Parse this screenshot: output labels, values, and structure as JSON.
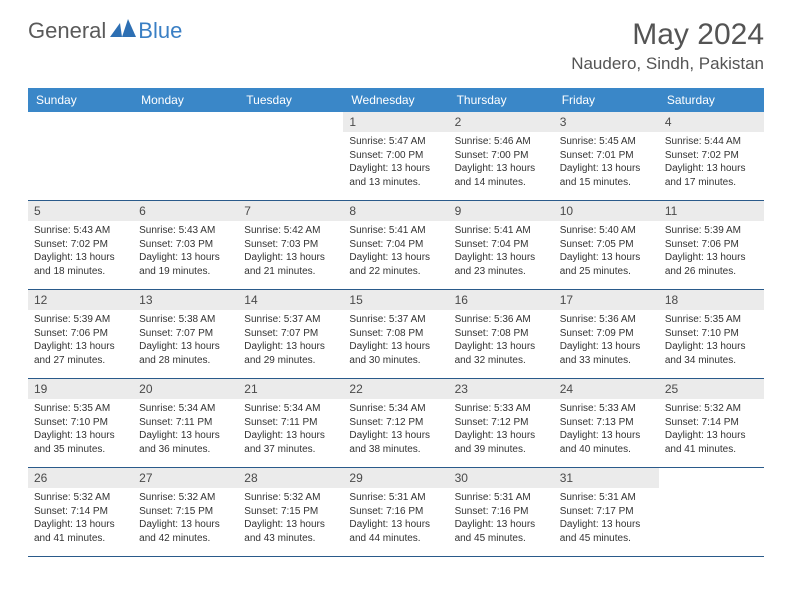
{
  "brand": {
    "part1": "General",
    "part2": "Blue"
  },
  "title": "May 2024",
  "location": "Naudero, Sindh, Pakistan",
  "colors": {
    "header_bg": "#3a87c8",
    "header_text": "#ffffff",
    "daynum_bg": "#ebebeb",
    "rule": "#2a5a8a",
    "logo_gray": "#5a5a5a",
    "logo_blue": "#3a7fc4"
  },
  "weekdays": [
    "Sunday",
    "Monday",
    "Tuesday",
    "Wednesday",
    "Thursday",
    "Friday",
    "Saturday"
  ],
  "weeks": [
    [
      {
        "n": "",
        "lines": []
      },
      {
        "n": "",
        "lines": []
      },
      {
        "n": "",
        "lines": []
      },
      {
        "n": "1",
        "lines": [
          "Sunrise: 5:47 AM",
          "Sunset: 7:00 PM",
          "Daylight: 13 hours",
          "and 13 minutes."
        ]
      },
      {
        "n": "2",
        "lines": [
          "Sunrise: 5:46 AM",
          "Sunset: 7:00 PM",
          "Daylight: 13 hours",
          "and 14 minutes."
        ]
      },
      {
        "n": "3",
        "lines": [
          "Sunrise: 5:45 AM",
          "Sunset: 7:01 PM",
          "Daylight: 13 hours",
          "and 15 minutes."
        ]
      },
      {
        "n": "4",
        "lines": [
          "Sunrise: 5:44 AM",
          "Sunset: 7:02 PM",
          "Daylight: 13 hours",
          "and 17 minutes."
        ]
      }
    ],
    [
      {
        "n": "5",
        "lines": [
          "Sunrise: 5:43 AM",
          "Sunset: 7:02 PM",
          "Daylight: 13 hours",
          "and 18 minutes."
        ]
      },
      {
        "n": "6",
        "lines": [
          "Sunrise: 5:43 AM",
          "Sunset: 7:03 PM",
          "Daylight: 13 hours",
          "and 19 minutes."
        ]
      },
      {
        "n": "7",
        "lines": [
          "Sunrise: 5:42 AM",
          "Sunset: 7:03 PM",
          "Daylight: 13 hours",
          "and 21 minutes."
        ]
      },
      {
        "n": "8",
        "lines": [
          "Sunrise: 5:41 AM",
          "Sunset: 7:04 PM",
          "Daylight: 13 hours",
          "and 22 minutes."
        ]
      },
      {
        "n": "9",
        "lines": [
          "Sunrise: 5:41 AM",
          "Sunset: 7:04 PM",
          "Daylight: 13 hours",
          "and 23 minutes."
        ]
      },
      {
        "n": "10",
        "lines": [
          "Sunrise: 5:40 AM",
          "Sunset: 7:05 PM",
          "Daylight: 13 hours",
          "and 25 minutes."
        ]
      },
      {
        "n": "11",
        "lines": [
          "Sunrise: 5:39 AM",
          "Sunset: 7:06 PM",
          "Daylight: 13 hours",
          "and 26 minutes."
        ]
      }
    ],
    [
      {
        "n": "12",
        "lines": [
          "Sunrise: 5:39 AM",
          "Sunset: 7:06 PM",
          "Daylight: 13 hours",
          "and 27 minutes."
        ]
      },
      {
        "n": "13",
        "lines": [
          "Sunrise: 5:38 AM",
          "Sunset: 7:07 PM",
          "Daylight: 13 hours",
          "and 28 minutes."
        ]
      },
      {
        "n": "14",
        "lines": [
          "Sunrise: 5:37 AM",
          "Sunset: 7:07 PM",
          "Daylight: 13 hours",
          "and 29 minutes."
        ]
      },
      {
        "n": "15",
        "lines": [
          "Sunrise: 5:37 AM",
          "Sunset: 7:08 PM",
          "Daylight: 13 hours",
          "and 30 minutes."
        ]
      },
      {
        "n": "16",
        "lines": [
          "Sunrise: 5:36 AM",
          "Sunset: 7:08 PM",
          "Daylight: 13 hours",
          "and 32 minutes."
        ]
      },
      {
        "n": "17",
        "lines": [
          "Sunrise: 5:36 AM",
          "Sunset: 7:09 PM",
          "Daylight: 13 hours",
          "and 33 minutes."
        ]
      },
      {
        "n": "18",
        "lines": [
          "Sunrise: 5:35 AM",
          "Sunset: 7:10 PM",
          "Daylight: 13 hours",
          "and 34 minutes."
        ]
      }
    ],
    [
      {
        "n": "19",
        "lines": [
          "Sunrise: 5:35 AM",
          "Sunset: 7:10 PM",
          "Daylight: 13 hours",
          "and 35 minutes."
        ]
      },
      {
        "n": "20",
        "lines": [
          "Sunrise: 5:34 AM",
          "Sunset: 7:11 PM",
          "Daylight: 13 hours",
          "and 36 minutes."
        ]
      },
      {
        "n": "21",
        "lines": [
          "Sunrise: 5:34 AM",
          "Sunset: 7:11 PM",
          "Daylight: 13 hours",
          "and 37 minutes."
        ]
      },
      {
        "n": "22",
        "lines": [
          "Sunrise: 5:34 AM",
          "Sunset: 7:12 PM",
          "Daylight: 13 hours",
          "and 38 minutes."
        ]
      },
      {
        "n": "23",
        "lines": [
          "Sunrise: 5:33 AM",
          "Sunset: 7:12 PM",
          "Daylight: 13 hours",
          "and 39 minutes."
        ]
      },
      {
        "n": "24",
        "lines": [
          "Sunrise: 5:33 AM",
          "Sunset: 7:13 PM",
          "Daylight: 13 hours",
          "and 40 minutes."
        ]
      },
      {
        "n": "25",
        "lines": [
          "Sunrise: 5:32 AM",
          "Sunset: 7:14 PM",
          "Daylight: 13 hours",
          "and 41 minutes."
        ]
      }
    ],
    [
      {
        "n": "26",
        "lines": [
          "Sunrise: 5:32 AM",
          "Sunset: 7:14 PM",
          "Daylight: 13 hours",
          "and 41 minutes."
        ]
      },
      {
        "n": "27",
        "lines": [
          "Sunrise: 5:32 AM",
          "Sunset: 7:15 PM",
          "Daylight: 13 hours",
          "and 42 minutes."
        ]
      },
      {
        "n": "28",
        "lines": [
          "Sunrise: 5:32 AM",
          "Sunset: 7:15 PM",
          "Daylight: 13 hours",
          "and 43 minutes."
        ]
      },
      {
        "n": "29",
        "lines": [
          "Sunrise: 5:31 AM",
          "Sunset: 7:16 PM",
          "Daylight: 13 hours",
          "and 44 minutes."
        ]
      },
      {
        "n": "30",
        "lines": [
          "Sunrise: 5:31 AM",
          "Sunset: 7:16 PM",
          "Daylight: 13 hours",
          "and 45 minutes."
        ]
      },
      {
        "n": "31",
        "lines": [
          "Sunrise: 5:31 AM",
          "Sunset: 7:17 PM",
          "Daylight: 13 hours",
          "and 45 minutes."
        ]
      },
      {
        "n": "",
        "lines": []
      }
    ]
  ]
}
